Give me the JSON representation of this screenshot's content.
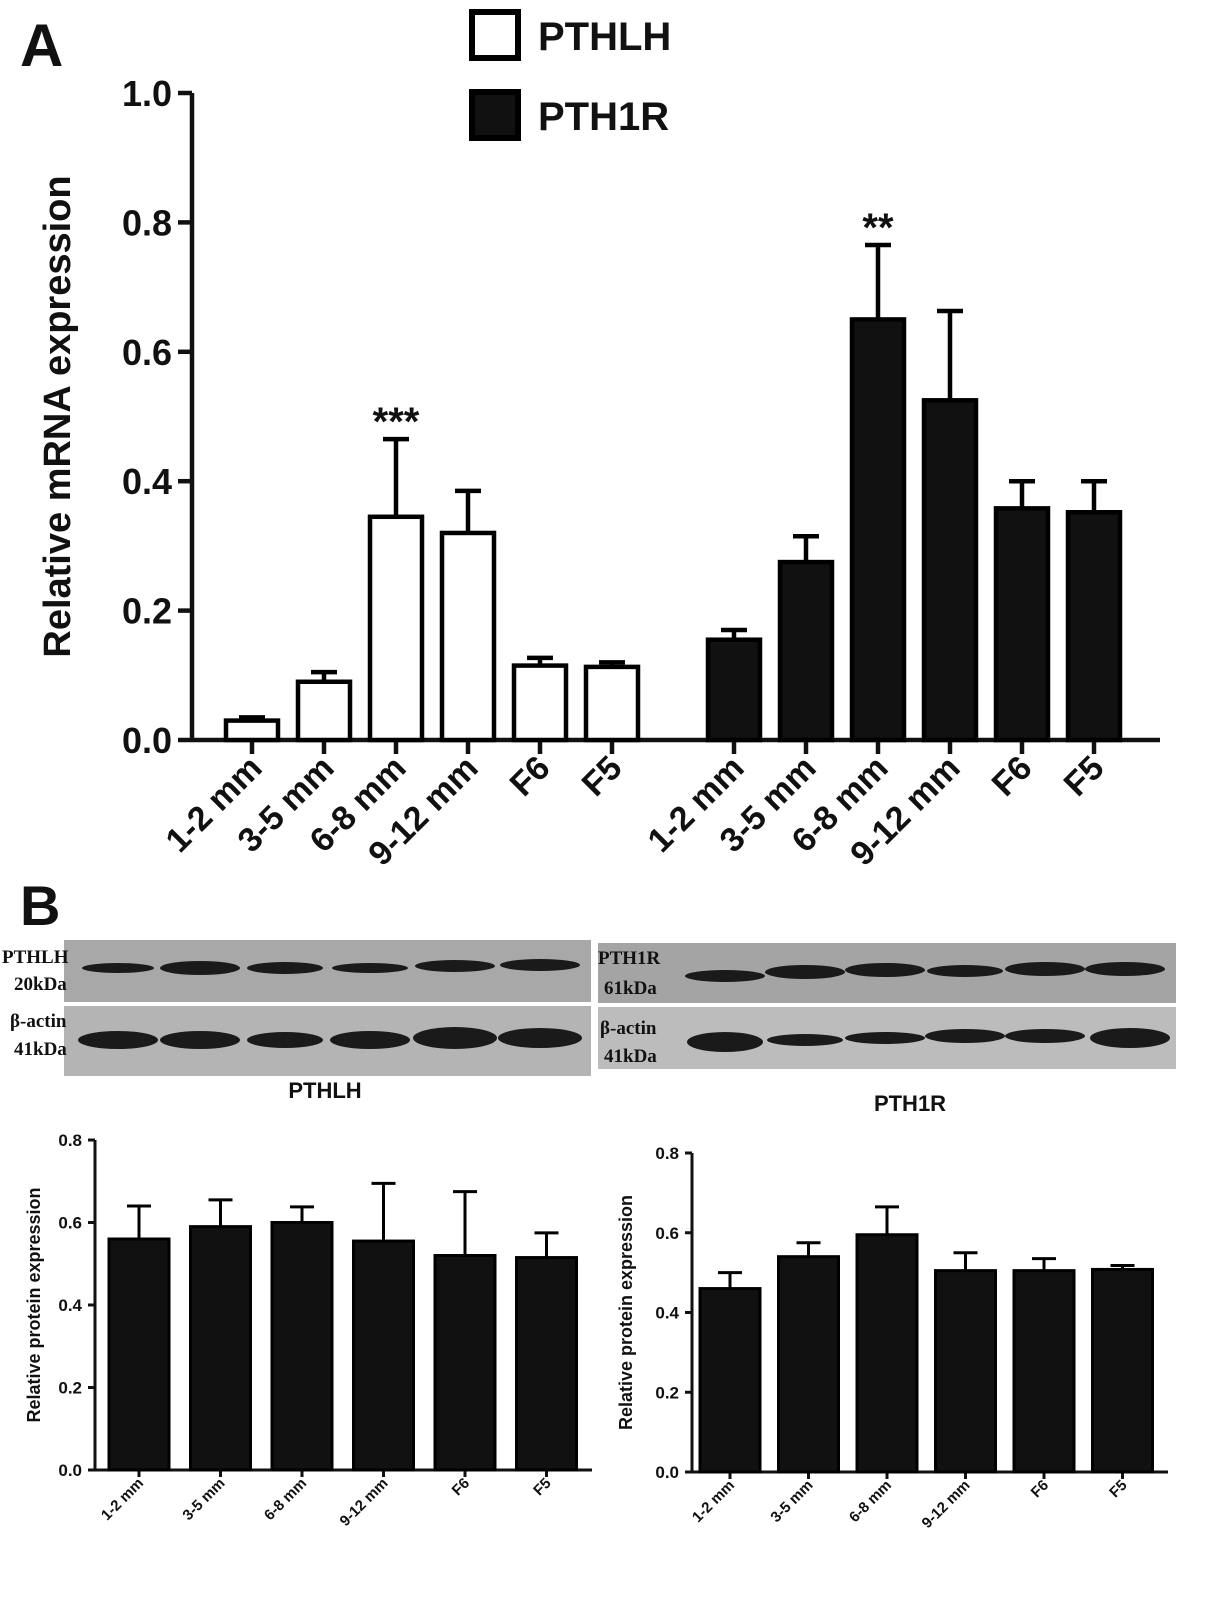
{
  "panels": [
    "A",
    "B"
  ],
  "blots": [
    {
      "label": "PTHLH",
      "size": "20kDa",
      "control": "β-actin",
      "control_size": "41kDa"
    },
    {
      "label": "PTH1R",
      "size": "61kDa",
      "control": "β-actin",
      "control_size": "41kDa"
    }
  ],
  "chart_data": [
    {
      "type": "bar",
      "y_label": "Relative mRNA expression",
      "legend": "top",
      "categories": [
        "1-2 mm",
        "3-5 mm",
        "6-8 mm",
        "9-12 mm",
        "F6",
        "F5",
        "1-2 mm",
        "3-5 mm",
        "6-8 mm",
        "9-12 mm",
        "F6",
        "F5"
      ],
      "series": [
        {
          "name": "PTHLH",
          "color": "#ffffff",
          "edge_color": "#000000",
          "values": [
            0.03,
            0.09,
            0.345,
            0.32,
            0.115,
            0.113,
            null,
            null,
            null,
            null,
            null,
            null
          ],
          "errors": [
            0.005,
            0.015,
            0.12,
            0.065,
            0.012,
            0.007,
            null,
            null,
            null,
            null,
            null,
            null
          ]
        },
        {
          "name": "PTH1R",
          "color": "#111111",
          "edge_color": "#000000",
          "values": [
            null,
            null,
            null,
            null,
            null,
            null,
            0.155,
            0.275,
            0.65,
            0.525,
            0.358,
            0.352
          ],
          "errors": [
            null,
            null,
            null,
            null,
            null,
            null,
            0.015,
            0.04,
            0.115,
            0.138,
            0.042,
            0.048
          ]
        }
      ],
      "annotations": [
        {
          "text": "***",
          "series": "PTHLH",
          "category": "6-8 mm"
        },
        {
          "text": "**",
          "series": "PTH1R",
          "category": "6-8 mm"
        }
      ],
      "ylim": [
        0,
        1
      ],
      "yticks": [
        {
          "value": 0,
          "label": "0.0"
        },
        0.2,
        0.4,
        0.6,
        0.8,
        {
          "value": 1,
          "label": "1.0"
        }
      ]
    },
    {
      "type": "bar",
      "title": "PTHLH",
      "y_label": "Relative protein expression",
      "categories": [
        "1-2 mm",
        "3-5 mm",
        "6-8 mm",
        "9-12 mm",
        "F6",
        "F5"
      ],
      "series": [
        {
          "color": "#111111",
          "edge_color": "#000000",
          "values": [
            0.56,
            0.59,
            0.6,
            0.555,
            0.52,
            0.515
          ],
          "errors": [
            0.08,
            0.065,
            0.038,
            0.14,
            0.155,
            0.06
          ]
        }
      ],
      "ylim": [
        0,
        0.8
      ],
      "yticks": [
        {
          "value": 0,
          "label": "0.0"
        },
        0.2,
        0.4,
        0.6,
        0.8
      ]
    },
    {
      "type": "bar",
      "title": "PTH1R",
      "y_label": "Relative protein expression",
      "categories": [
        "1-2 mm",
        "3-5 mm",
        "6-8 mm",
        "9-12 mm",
        "F6",
        "F5"
      ],
      "series": [
        {
          "color": "#111111",
          "edge_color": "#000000",
          "values": [
            0.46,
            0.54,
            0.595,
            0.505,
            0.505,
            0.508
          ],
          "errors": [
            0.04,
            0.035,
            0.07,
            0.045,
            0.03,
            0.01
          ]
        }
      ],
      "ylim": [
        0,
        0.8
      ],
      "yticks": [
        {
          "value": 0,
          "label": "0.0"
        },
        0.2,
        0.4,
        0.6,
        0.8
      ]
    }
  ]
}
